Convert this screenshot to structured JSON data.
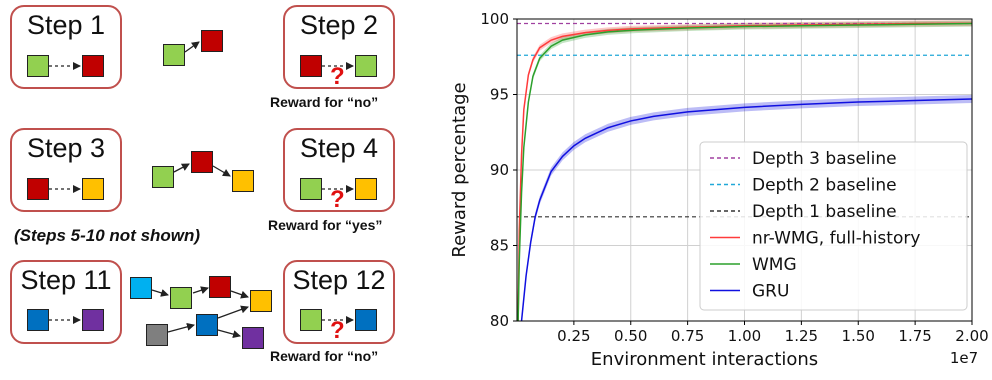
{
  "colors": {
    "green": "#92d050",
    "red": "#c00000",
    "orange": "#ffc000",
    "blue": "#0070c0",
    "purple": "#7030a0",
    "cyan": "#00b0f0",
    "gray": "#7f7f7f",
    "box_border": "#c0504d",
    "question": "#e01010"
  },
  "diagram": {
    "steps": [
      {
        "id": "step1",
        "label": "Step 1"
      },
      {
        "id": "step2",
        "label": "Step 2"
      },
      {
        "id": "step3",
        "label": "Step 3"
      },
      {
        "id": "step4",
        "label": "Step 4"
      },
      {
        "id": "step11",
        "label": "Step 11"
      },
      {
        "id": "step12",
        "label": "Step 12"
      }
    ],
    "question_mark": "?",
    "rewards": [
      "Reward for “no”",
      "Reward for “yes”",
      "Reward for “no”"
    ],
    "note": "(Steps 5-10 not shown)"
  },
  "chart_data": {
    "type": "line",
    "title": "",
    "xlabel": "Environment interactions",
    "ylabel": "Reward percentage",
    "x_multiplier": "1e7",
    "xlim": [
      0,
      2.0
    ],
    "ylim": [
      80,
      100
    ],
    "xticks": [
      "0.25",
      "0.50",
      "0.75",
      "1.00",
      "1.25",
      "1.50",
      "1.75",
      "2.00"
    ],
    "yticks": [
      "80",
      "85",
      "90",
      "95",
      "100"
    ],
    "grid": true,
    "legend_position": "lower-right",
    "baselines": [
      {
        "name": "Depth 3 baseline",
        "y": 99.7,
        "color": "#a040a0"
      },
      {
        "name": "Depth 2 baseline",
        "y": 97.6,
        "color": "#20a8d8"
      },
      {
        "name": "Depth 1 baseline",
        "y": 86.9,
        "color": "#333333"
      }
    ],
    "series": [
      {
        "name": "nr-WMG, full-history",
        "color": "#ff3b3b",
        "x": [
          0.005,
          0.01,
          0.02,
          0.03,
          0.05,
          0.07,
          0.1,
          0.15,
          0.2,
          0.3,
          0.4,
          0.5,
          0.75,
          1.0,
          1.25,
          1.5,
          1.75,
          2.0
        ],
        "y": [
          80,
          86,
          91,
          94,
          96.3,
          97.3,
          98.1,
          98.6,
          98.85,
          99.1,
          99.25,
          99.35,
          99.45,
          99.55,
          99.6,
          99.65,
          99.7,
          99.72
        ]
      },
      {
        "name": "WMG",
        "color": "#2ca02c",
        "x": [
          0.005,
          0.01,
          0.02,
          0.03,
          0.05,
          0.07,
          0.1,
          0.15,
          0.2,
          0.3,
          0.4,
          0.5,
          0.75,
          1.0,
          1.25,
          1.5,
          1.75,
          2.0
        ],
        "y": [
          80,
          84,
          88.5,
          91.5,
          94.5,
          96.2,
          97.4,
          98.2,
          98.6,
          98.95,
          99.15,
          99.25,
          99.4,
          99.5,
          99.55,
          99.6,
          99.65,
          99.7
        ]
      },
      {
        "name": "GRU",
        "color": "#1010e0",
        "x": [
          0.02,
          0.04,
          0.06,
          0.08,
          0.1,
          0.15,
          0.2,
          0.25,
          0.3,
          0.4,
          0.5,
          0.6,
          0.75,
          1.0,
          1.25,
          1.5,
          1.75,
          2.0
        ],
        "y": [
          80,
          83,
          85.2,
          86.9,
          88,
          89.9,
          90.9,
          91.6,
          92.1,
          92.8,
          93.25,
          93.55,
          93.85,
          94.15,
          94.35,
          94.5,
          94.6,
          94.7
        ]
      }
    ]
  }
}
